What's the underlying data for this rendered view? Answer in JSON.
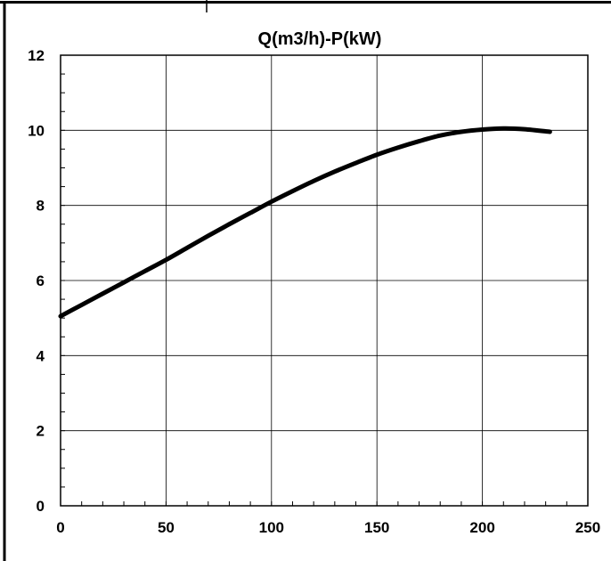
{
  "chart_data": {
    "type": "line",
    "title": "Q(m3/h)-P(kW)",
    "xlabel": "",
    "ylabel": "",
    "xlim": [
      0,
      250
    ],
    "ylim": [
      0,
      12
    ],
    "x_ticks": [
      0,
      50,
      100,
      150,
      200,
      250
    ],
    "y_ticks": [
      0,
      2,
      4,
      6,
      8,
      10,
      12
    ],
    "grid": true,
    "legend": "none",
    "series": [
      {
        "color": "#000000",
        "x": [
          0,
          10,
          20,
          30,
          40,
          50,
          60,
          70,
          80,
          90,
          100,
          110,
          120,
          130,
          140,
          150,
          160,
          170,
          180,
          190,
          200,
          210,
          220,
          232
        ],
        "y": [
          5.05,
          5.35,
          5.65,
          5.95,
          6.25,
          6.55,
          6.87,
          7.19,
          7.5,
          7.8,
          8.1,
          8.38,
          8.65,
          8.9,
          9.13,
          9.35,
          9.54,
          9.71,
          9.86,
          9.96,
          10.02,
          10.05,
          10.03,
          9.96
        ]
      }
    ]
  }
}
